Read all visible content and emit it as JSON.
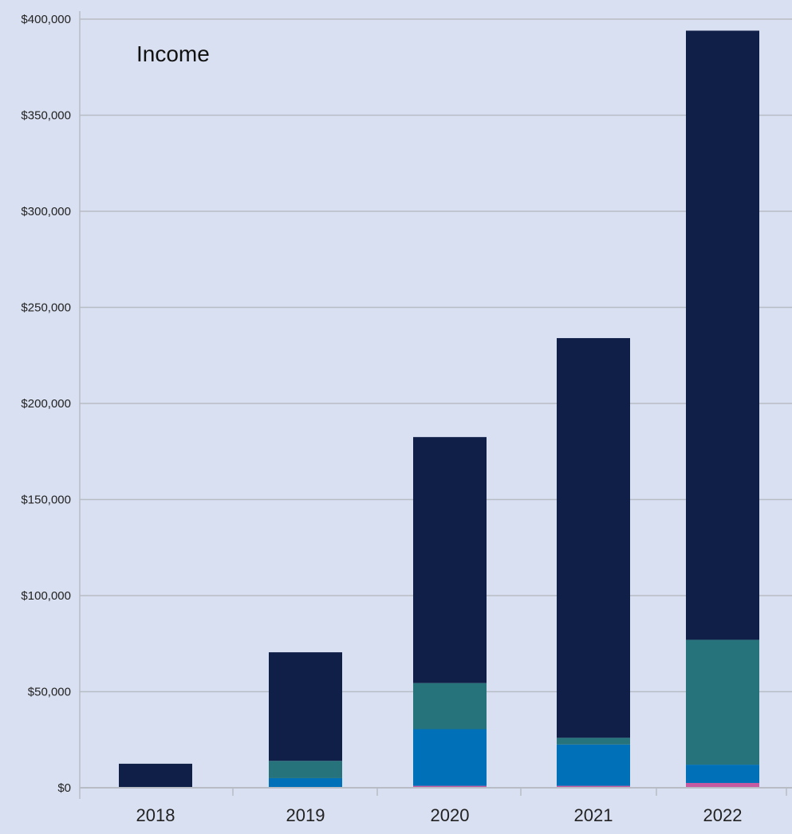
{
  "chart_data": {
    "type": "bar",
    "stacked": true,
    "title": "Income",
    "xlabel": "",
    "ylabel": "",
    "categories": [
      "2018",
      "2019",
      "2020",
      "2021",
      "2022"
    ],
    "series": [
      {
        "values": [
          0,
          0,
          1000,
          1000,
          2500
        ],
        "color": "#c75ba1"
      },
      {
        "values": [
          0,
          5000,
          29500,
          21500,
          9500
        ],
        "color": "#0070b8"
      },
      {
        "values": [
          0,
          9000,
          24000,
          3500,
          65000
        ],
        "color": "#27737c"
      },
      {
        "values": [
          12500,
          56500,
          128000,
          208000,
          317000
        ],
        "color": "#101f48"
      }
    ],
    "ylim": [
      0,
      400000
    ],
    "yticks": [
      0,
      50000,
      100000,
      150000,
      200000,
      250000,
      300000,
      350000,
      400000
    ],
    "ytick_labels": [
      "$0",
      "$50,000",
      "$100,000",
      "$150,000",
      "$200,000",
      "$250,000",
      "$300,000",
      "$350,000",
      "$400,000"
    ],
    "grid": true,
    "background": "#d9e0f1",
    "gridline_color": "#b8bcc4"
  }
}
